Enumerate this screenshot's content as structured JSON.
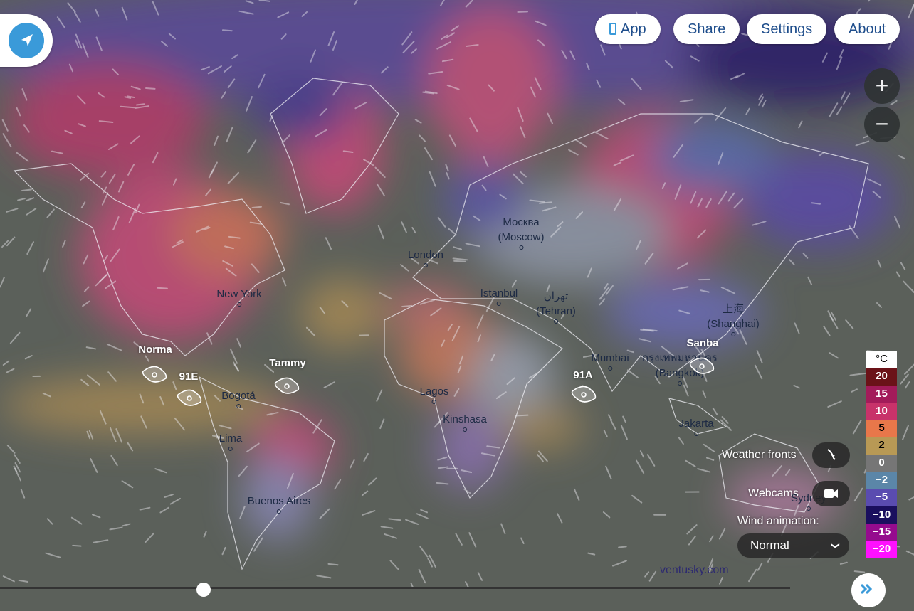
{
  "nav": {
    "app": "App",
    "share": "Share",
    "settings": "Settings",
    "about": "About"
  },
  "zoom": {
    "in": "+",
    "out": "−"
  },
  "cities": [
    {
      "name": "Москва",
      "sub": "(Moscow)"
    },
    {
      "name": "London",
      "sub": ""
    },
    {
      "name": "New York",
      "sub": ""
    },
    {
      "name": "Istanbul",
      "sub": ""
    },
    {
      "name": "تهران",
      "sub": "(Tehran)"
    },
    {
      "name": "上海",
      "sub": "(Shanghai)"
    },
    {
      "name": "Mumbai",
      "sub": ""
    },
    {
      "name": "กรุงเทพมหานคร",
      "sub": "(Bangkok)"
    },
    {
      "name": "Bogotá",
      "sub": ""
    },
    {
      "name": "Lagos",
      "sub": ""
    },
    {
      "name": "Kinshasa",
      "sub": ""
    },
    {
      "name": "Lima",
      "sub": ""
    },
    {
      "name": "Jakarta",
      "sub": ""
    },
    {
      "name": "Buenos Aires",
      "sub": ""
    },
    {
      "name": "Sydney",
      "sub": ""
    }
  ],
  "storms": [
    "Norma",
    "91E",
    "Tammy",
    "91A",
    "Sanba"
  ],
  "legend": {
    "unit": "°C",
    "steps": [
      {
        "label": "20",
        "color": "#6b1218"
      },
      {
        "label": "15",
        "color": "#a31b5a"
      },
      {
        "label": "10",
        "color": "#c8326a"
      },
      {
        "label": "5",
        "color": "#e8774a"
      },
      {
        "label": "2",
        "color": "#b89955"
      },
      {
        "label": "0",
        "color": "#767676"
      },
      {
        "label": "−2",
        "color": "#5b86a8"
      },
      {
        "label": "−5",
        "color": "#5a4cb0"
      },
      {
        "label": "−10",
        "color": "#1a0f5e"
      },
      {
        "label": "−15",
        "color": "#950b8e"
      },
      {
        "label": "−20",
        "color": "#ff10ff"
      }
    ]
  },
  "controls": {
    "weather_fronts": "Weather fronts",
    "webcams": "Webcams",
    "wind_animation": "Wind animation:",
    "wind_animation_value": "Normal"
  },
  "attribution": "ventusky.com",
  "colors": {
    "accent": "#3a9ad9",
    "button_text": "#1f4e8c"
  }
}
